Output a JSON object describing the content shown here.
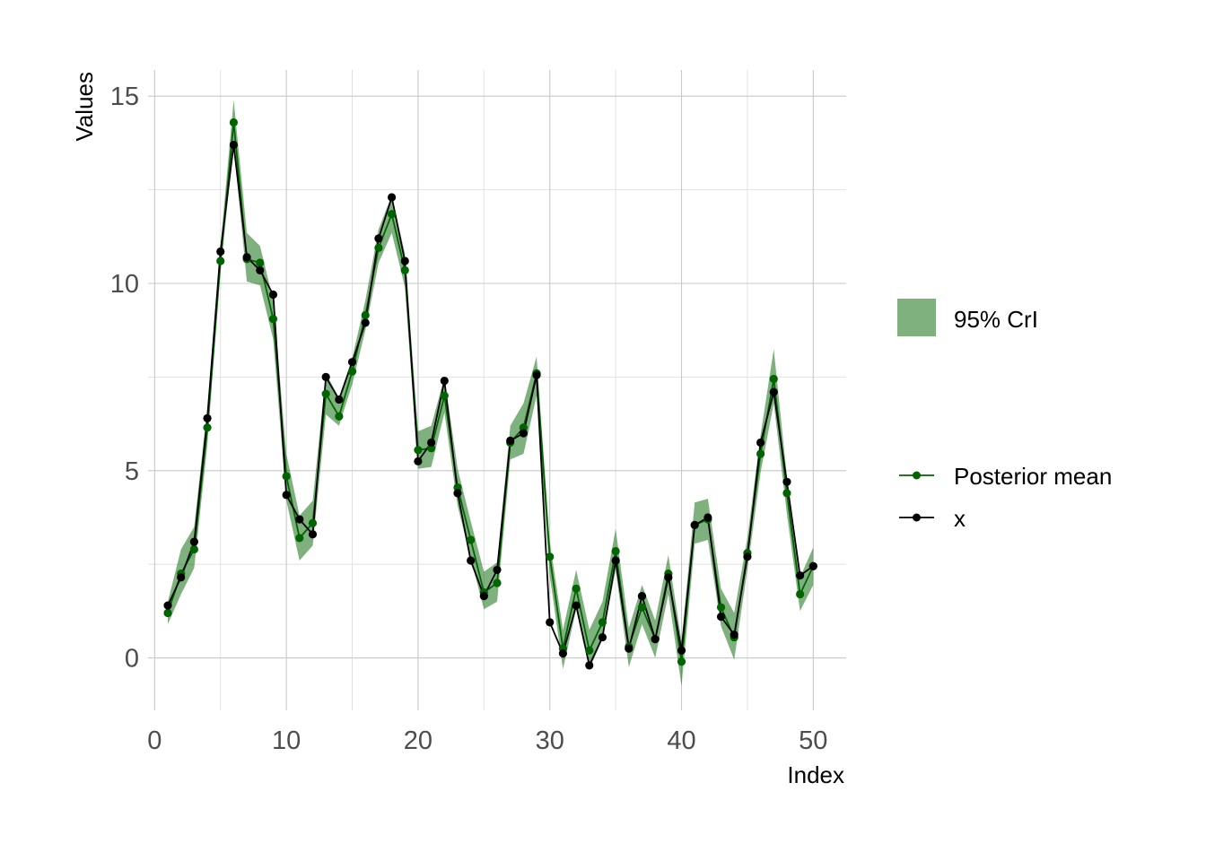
{
  "chart_data": {
    "type": "line",
    "title": "",
    "xlabel": "Index",
    "ylabel": "Values",
    "xlim": [
      -0.5,
      52.5
    ],
    "ylim": [
      -1.4,
      15.7
    ],
    "x_ticks": [
      0,
      10,
      20,
      30,
      40,
      50
    ],
    "y_ticks": [
      0,
      5,
      10,
      15
    ],
    "grid": true,
    "legend_position": "right",
    "x": [
      1,
      2,
      3,
      4,
      5,
      6,
      7,
      8,
      9,
      10,
      11,
      12,
      13,
      14,
      15,
      16,
      17,
      18,
      19,
      20,
      21,
      22,
      23,
      24,
      25,
      26,
      27,
      28,
      29,
      30,
      31,
      32,
      33,
      34,
      35,
      36,
      37,
      38,
      39,
      40,
      41,
      42,
      43,
      44,
      45,
      46,
      47,
      48,
      49,
      50
    ],
    "series": [
      {
        "name": "Posterior mean",
        "color": "#006400",
        "values": [
          1.2,
          2.25,
          2.9,
          6.15,
          10.6,
          14.3,
          10.65,
          10.55,
          9.05,
          4.85,
          3.2,
          3.6,
          7.05,
          6.45,
          7.65,
          9.15,
          10.95,
          11.85,
          10.35,
          5.55,
          5.6,
          7.0,
          4.55,
          3.15,
          1.75,
          2.0,
          5.75,
          6.15,
          7.6,
          2.7,
          0.25,
          1.85,
          0.2,
          0.95,
          2.85,
          0.3,
          1.35,
          0.5,
          2.25,
          -0.1,
          3.55,
          3.7,
          1.35,
          0.55,
          2.8,
          5.45,
          7.45,
          4.4,
          1.7,
          2.45
        ]
      },
      {
        "name": "x",
        "color": "#000000",
        "values": [
          1.4,
          2.15,
          3.1,
          6.4,
          10.85,
          13.7,
          10.7,
          10.35,
          9.7,
          4.35,
          3.7,
          3.3,
          7.5,
          6.9,
          7.9,
          8.95,
          11.2,
          12.3,
          10.6,
          5.25,
          5.75,
          7.4,
          4.4,
          2.6,
          1.65,
          2.35,
          5.8,
          6.0,
          7.55,
          0.95,
          0.12,
          1.4,
          -0.2,
          0.55,
          2.6,
          0.25,
          1.65,
          0.5,
          2.15,
          0.2,
          3.55,
          3.75,
          1.1,
          0.62,
          2.7,
          5.75,
          7.1,
          4.7,
          2.2,
          2.45
        ]
      }
    ],
    "ribbon": {
      "name": "95% CrI",
      "color": "#006400",
      "opacity": 0.5,
      "lower": [
        0.9,
        1.7,
        2.4,
        5.7,
        10.3,
        13.7,
        10.05,
        9.95,
        8.5,
        4.2,
        2.6,
        3.0,
        6.5,
        6.2,
        7.3,
        8.75,
        10.55,
        11.35,
        9.9,
        5.05,
        5.1,
        6.55,
        4.05,
        2.65,
        1.3,
        1.5,
        5.3,
        5.45,
        7.0,
        2.2,
        -0.3,
        1.3,
        -0.3,
        0.5,
        2.35,
        -0.25,
        0.9,
        0.0,
        1.7,
        -0.75,
        3.05,
        3.15,
        0.85,
        -0.05,
        2.35,
        4.95,
        6.8,
        3.85,
        1.25,
        1.95
      ],
      "upper": [
        1.5,
        2.9,
        3.5,
        6.7,
        11.0,
        14.9,
        11.35,
        11.0,
        9.55,
        5.45,
        3.8,
        4.2,
        7.6,
        6.95,
        8.0,
        9.55,
        11.45,
        12.35,
        10.8,
        6.05,
        6.2,
        7.5,
        5.05,
        3.65,
        2.3,
        2.55,
        6.2,
        6.8,
        8.05,
        3.1,
        0.75,
        2.35,
        0.75,
        1.5,
        3.45,
        0.8,
        1.95,
        1.0,
        2.75,
        0.45,
        4.15,
        4.25,
        1.85,
        1.2,
        3.2,
        5.95,
        8.25,
        4.85,
        2.15,
        2.95
      ]
    }
  }
}
